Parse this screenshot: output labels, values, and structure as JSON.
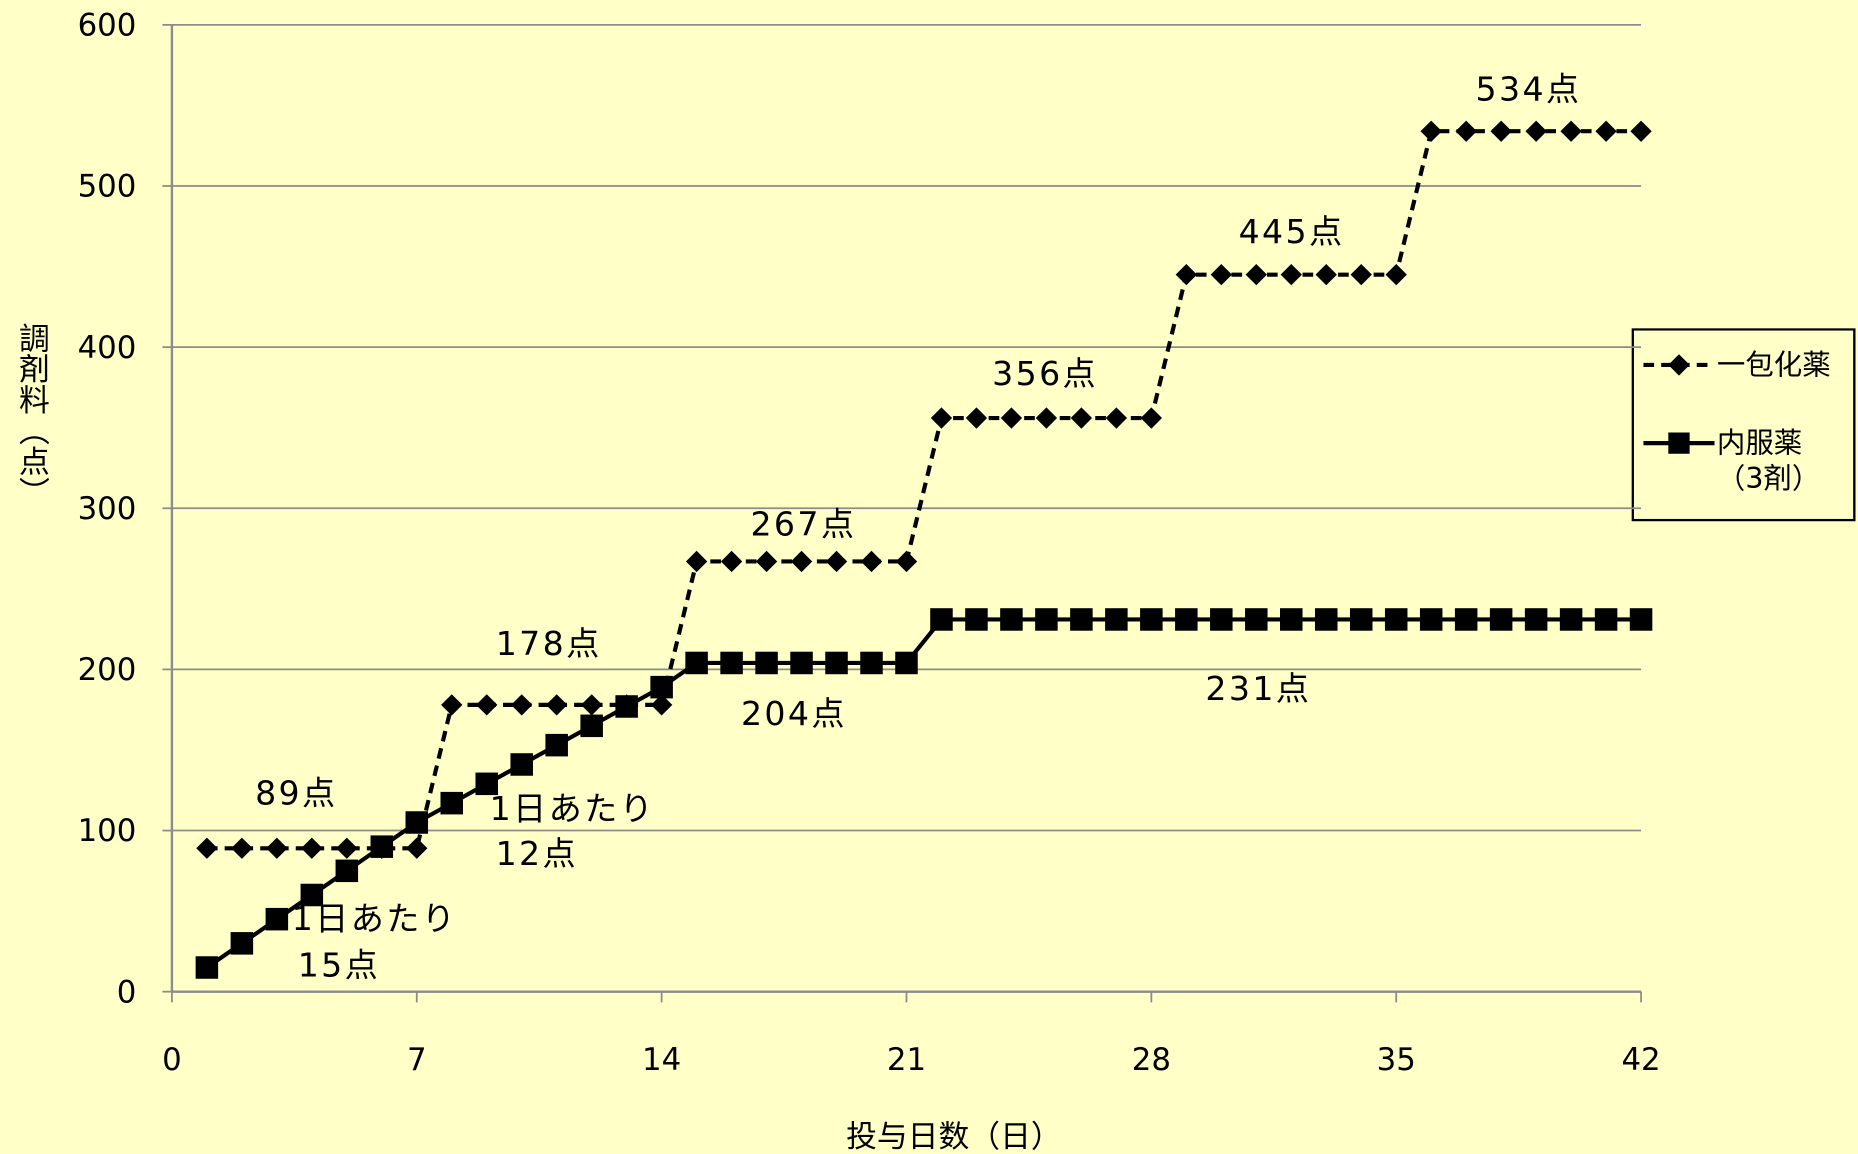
{
  "chart_data": {
    "type": "line",
    "xlabel": "投与日数（日）",
    "ylabel": "調剤料（点）",
    "x": [
      1,
      2,
      3,
      4,
      5,
      6,
      7,
      8,
      9,
      10,
      11,
      12,
      13,
      14,
      15,
      16,
      17,
      18,
      19,
      20,
      21,
      22,
      23,
      24,
      25,
      26,
      27,
      28,
      29,
      30,
      31,
      32,
      33,
      34,
      35,
      36,
      37,
      38,
      39,
      40,
      41,
      42
    ],
    "series": [
      {
        "name": "一包化薬",
        "color": "#000000",
        "linestyle": "dashed",
        "marker": "diamond",
        "values": [
          89,
          89,
          89,
          89,
          89,
          89,
          89,
          178,
          178,
          178,
          178,
          178,
          178,
          178,
          267,
          267,
          267,
          267,
          267,
          267,
          267,
          356,
          356,
          356,
          356,
          356,
          356,
          356,
          445,
          445,
          445,
          445,
          445,
          445,
          445,
          534,
          534,
          534,
          534,
          534,
          534,
          534
        ]
      },
      {
        "name": "内服薬（3剤）",
        "color": "#000000",
        "linestyle": "solid",
        "marker": "square",
        "values": [
          15,
          30,
          45,
          60,
          75,
          90,
          105,
          117,
          129,
          141,
          153,
          165,
          177,
          189,
          204,
          204,
          204,
          204,
          204,
          204,
          204,
          231,
          231,
          231,
          231,
          231,
          231,
          231,
          231,
          231,
          231,
          231,
          231,
          231,
          231,
          231,
          231,
          231,
          231,
          231,
          231,
          231
        ]
      }
    ],
    "annotations": [
      "89点",
      "178点",
      "267点",
      "356点",
      "445点",
      "534点",
      "204点",
      "231点",
      "1日あたり",
      "15点",
      "1日あたり",
      "12点"
    ],
    "xlim": [
      0,
      42
    ],
    "xticks": [
      0,
      7,
      14,
      21,
      28,
      35,
      42
    ],
    "ylim": [
      0,
      600
    ],
    "yticks": [
      0,
      100,
      200,
      300,
      400,
      500,
      600
    ],
    "grid": true,
    "legend": "right"
  }
}
